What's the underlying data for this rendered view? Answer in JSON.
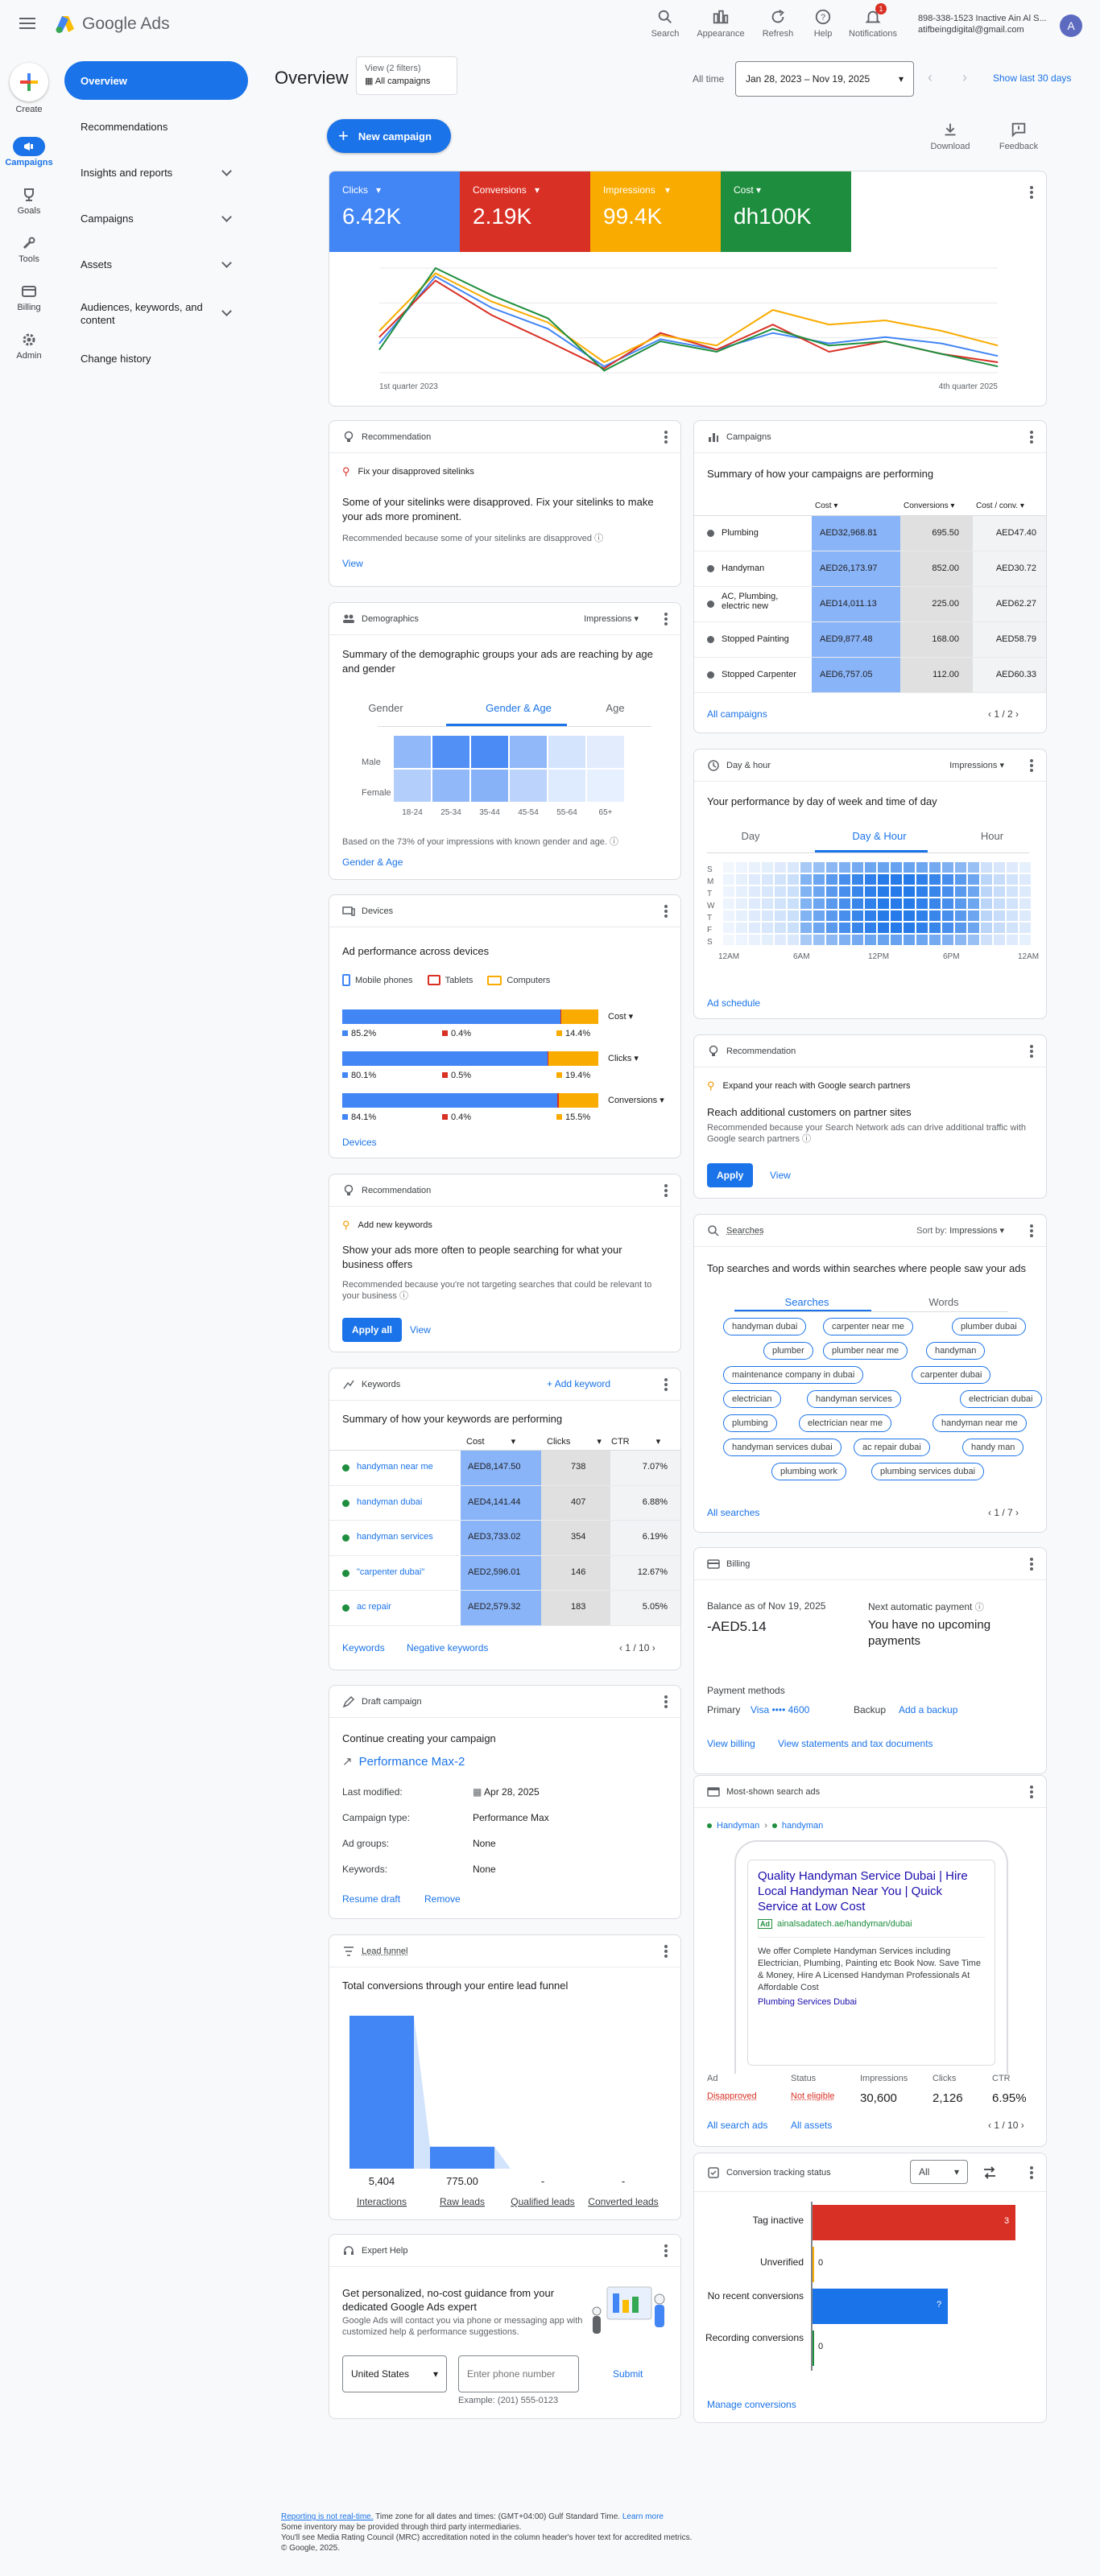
{
  "app": {
    "name": "Google Ads"
  },
  "topbar": {
    "search": "Search",
    "appearance": "Appearance",
    "refresh": "Refresh",
    "help": "Help",
    "notifications": "Notifications",
    "notif_count": "1",
    "account_line1": "898-338-1523 Inactive Ain Al S...",
    "account_line2": "atifbeingdigital@gmail.com",
    "avatar": "A"
  },
  "rail": {
    "create": "Create",
    "campaigns": "Campaigns",
    "goals": "Goals",
    "tools": "Tools",
    "billing": "Billing",
    "admin": "Admin"
  },
  "nav": {
    "overview": "Overview",
    "recommendations": "Recommendations",
    "insights": "Insights and reports",
    "campaigns": "Campaigns",
    "assets": "Assets",
    "audiences": "Audiences, keywords, and content",
    "change_history": "Change history"
  },
  "header": {
    "title": "Overview",
    "view_filter_line1": "View (2 filters)",
    "view_filter_line2": "All campaigns",
    "all_time": "All time",
    "date_range": "Jan 28, 2023 – Nov 19, 2025",
    "show_last": "Show last 30 days",
    "new_campaign": "New campaign",
    "download": "Download",
    "feedback": "Feedback"
  },
  "metrics": [
    {
      "label": "Clicks",
      "value": "6.42K",
      "color": "#4285f4"
    },
    {
      "label": "Conversions",
      "value": "2.19K",
      "color": "#d93025"
    },
    {
      "label": "Impressions",
      "value": "99.4K",
      "color": "#f9ab00"
    },
    {
      "label": "Cost",
      "value": "dh100K",
      "color": "#1e8e3e"
    }
  ],
  "chart_data": {
    "type": "line",
    "x": [
      "1st quarter 2023",
      "",
      "",
      "",
      "",
      "",
      "",
      "",
      "",
      "",
      "",
      "4th quarter 2025"
    ],
    "series": [
      {
        "name": "Clicks",
        "color": "#4285f4",
        "values": [
          0.28,
          0.92,
          0.62,
          0.42,
          0.06,
          0.32,
          0.22,
          0.38,
          0.28,
          0.34,
          0.28,
          0.16
        ]
      },
      {
        "name": "Conversions",
        "color": "#d93025",
        "values": [
          0.34,
          0.88,
          0.55,
          0.3,
          0.04,
          0.38,
          0.22,
          0.46,
          0.2,
          0.3,
          0.18,
          0.1
        ]
      },
      {
        "name": "Impressions",
        "color": "#f9ab00",
        "values": [
          0.4,
          0.95,
          0.68,
          0.48,
          0.1,
          0.36,
          0.26,
          0.6,
          0.46,
          0.5,
          0.4,
          0.26
        ]
      },
      {
        "name": "Cost",
        "color": "#1e8e3e",
        "values": [
          0.22,
          1.0,
          0.74,
          0.52,
          0.02,
          0.3,
          0.2,
          0.42,
          0.26,
          0.3,
          0.18,
          0.06
        ]
      }
    ],
    "xlabel_start": "1st quarter 2023",
    "xlabel_end": "4th quarter 2025",
    "grid": true
  },
  "rec1": {
    "head": "Recommendation",
    "sub": "Fix your disapproved sitelinks",
    "title": "Some of your sitelinks were disapproved. Fix your sitelinks to make your ads more prominent.",
    "note": "Recommended because some of your sitelinks are disapproved",
    "action": "View"
  },
  "demographics": {
    "head": "Demographics",
    "dropdown": "Impressions",
    "title": "Summary of the demographic groups your ads are reaching by age and gender",
    "tabs": [
      "Gender",
      "Gender & Age",
      "Age"
    ],
    "rows": [
      "Male",
      "Female"
    ],
    "cols": [
      "18-24",
      "25-34",
      "35-44",
      "45-54",
      "55-64",
      "65+"
    ],
    "male": [
      0.55,
      0.9,
      0.95,
      0.55,
      0.15,
      0.08
    ],
    "female": [
      0.35,
      0.55,
      0.6,
      0.3,
      0.1,
      0.05
    ],
    "note": "Based on the 73% of your impressions with known gender and age.",
    "link": "Gender & Age"
  },
  "devices": {
    "head": "Devices",
    "title": "Ad performance across devices",
    "legend": [
      "Mobile phones",
      "Tablets",
      "Computers"
    ],
    "rows": [
      {
        "label": "Cost",
        "mobile": 85.2,
        "tablet": 0.4,
        "computer": 14.4,
        "m": "85.2%",
        "t": "0.4%",
        "c": "14.4%"
      },
      {
        "label": "Clicks",
        "mobile": 80.1,
        "tablet": 0.5,
        "computer": 19.4,
        "m": "80.1%",
        "t": "0.5%",
        "c": "19.4%"
      },
      {
        "label": "Conversions",
        "mobile": 84.1,
        "tablet": 0.4,
        "computer": 15.5,
        "m": "84.1%",
        "t": "0.4%",
        "c": "15.5%"
      }
    ],
    "link": "Devices"
  },
  "rec2": {
    "head": "Recommendation",
    "sub": "Add new keywords",
    "title": "Show your ads more often to people searching for what your business offers",
    "note": "Recommended because you're not targeting searches that could be relevant to your business",
    "apply": "Apply all",
    "view": "View"
  },
  "keywords": {
    "head": "Keywords",
    "add": "Add keyword",
    "title": "Summary of how your keywords are performing",
    "cols": [
      "Cost",
      "Clicks",
      "CTR"
    ],
    "rows": [
      {
        "kw": "handyman near me",
        "cost": "AED8,147.50",
        "clicks": "738",
        "ctr": "7.07%"
      },
      {
        "kw": "handyman dubai",
        "cost": "AED4,141.44",
        "clicks": "407",
        "ctr": "6.88%"
      },
      {
        "kw": "handyman services",
        "cost": "AED3,733.02",
        "clicks": "354",
        "ctr": "6.19%"
      },
      {
        "kw": "\"carpenter dubai\"",
        "cost": "AED2,596.01",
        "clicks": "146",
        "ctr": "12.67%"
      },
      {
        "kw": "ac repair",
        "cost": "AED2,579.32",
        "clicks": "183",
        "ctr": "5.05%"
      }
    ],
    "link1": "Keywords",
    "link2": "Negative keywords",
    "page": "1 / 10"
  },
  "draft": {
    "head": "Draft campaign",
    "title": "Continue creating your campaign",
    "name": "Performance Max-2",
    "fields": [
      {
        "k": "Last modified:",
        "v": "Apr 28, 2025"
      },
      {
        "k": "Campaign type:",
        "v": "Performance Max"
      },
      {
        "k": "Ad groups:",
        "v": "None"
      },
      {
        "k": "Keywords:",
        "v": "None"
      }
    ],
    "resume": "Resume draft",
    "remove": "Remove"
  },
  "funnel": {
    "head": "Lead funnel",
    "title": "Total conversions through your entire lead funnel",
    "values": [
      5404,
      775,
      0,
      0
    ],
    "value_labels": [
      "5,404",
      "775.00",
      "-",
      "-"
    ],
    "labels": [
      "Interactions",
      "Raw leads",
      "Qualified leads",
      "Converted leads"
    ]
  },
  "expert": {
    "head": "Expert Help",
    "title": "Get personalized, no-cost guidance from your dedicated Google Ads expert",
    "desc": "Google Ads will contact you via phone or messaging app with customized help & performance suggestions.",
    "country": "United States",
    "phone_placeholder": "Enter phone number",
    "submit": "Submit",
    "example": "Example: (201) 555-0123"
  },
  "campaigns": {
    "head": "Campaigns",
    "title": "Summary of how your campaigns are performing",
    "cols": [
      "Cost",
      "Conversions",
      "Cost / conv."
    ],
    "rows": [
      {
        "name": "Plumbing",
        "cost": "AED32,968.81",
        "conv": "695.50",
        "cpc": "AED47.40"
      },
      {
        "name": "Handyman",
        "cost": "AED26,173.97",
        "conv": "852.00",
        "cpc": "AED30.72"
      },
      {
        "name": "AC, Plumbing, electric new",
        "cost": "AED14,011.13",
        "conv": "225.00",
        "cpc": "AED62.27"
      },
      {
        "name": "Stopped Painting",
        "cost": "AED9,877.48",
        "conv": "168.00",
        "cpc": "AED58.79"
      },
      {
        "name": "Stopped Carpenter",
        "cost": "AED6,757.05",
        "conv": "112.00",
        "cpc": "AED60.33"
      }
    ],
    "link": "All campaigns",
    "page": "1 / 2"
  },
  "dayhour": {
    "head": "Day & hour",
    "dropdown": "Impressions",
    "title": "Your performance by day of week and time of day",
    "tabs": [
      "Day",
      "Day & Hour",
      "Hour"
    ],
    "days": [
      "S",
      "M",
      "T",
      "W",
      "T",
      "F",
      "S"
    ],
    "xlabels": [
      "12AM",
      "6AM",
      "12PM",
      "6PM",
      "12AM"
    ],
    "link": "Ad schedule"
  },
  "rec3": {
    "head": "Recommendation",
    "sub": "Expand your reach with Google search partners",
    "title": "Reach additional customers on partner sites",
    "note": "Recommended because your Search Network ads can drive additional traffic with Google search partners",
    "apply": "Apply",
    "view": "View"
  },
  "searches": {
    "head": "Searches",
    "sortby": "Sort by:",
    "dropdown": "Impressions",
    "title": "Top searches and words within searches where people saw your ads",
    "tabs": [
      "Searches",
      "Words"
    ],
    "chips": [
      "handyman dubai",
      "carpenter near me",
      "plumber dubai",
      "plumber",
      "plumber near me",
      "handyman",
      "maintenance company in dubai",
      "carpenter dubai",
      "electrician",
      "handyman services",
      "electrician dubai",
      "plumbing",
      "electrician near me",
      "handyman near me",
      "handyman services dubai",
      "ac repair dubai",
      "handy man",
      "plumbing work",
      "plumbing services dubai"
    ],
    "link": "All searches",
    "page": "1 / 7"
  },
  "billing": {
    "head": "Billing",
    "balance_label": "Balance as of Nov 19, 2025",
    "balance": "-AED5.14",
    "next_label": "Next automatic payment",
    "next_value": "You have no upcoming payments",
    "methods": "Payment methods",
    "primary": "Primary",
    "visa": "Visa •••• 4600",
    "backup": "Backup",
    "add_backup": "Add a backup",
    "view": "View billing",
    "statements": "View statements and tax documents"
  },
  "ads": {
    "head": "Most-shown search ads",
    "crumb1": "Handyman",
    "crumb2": "handyman",
    "headline": "Quality Handyman Service Dubai | Hire Local Handyman Near You | Quick Service at Low Cost",
    "ad_label": "Ad",
    "url": "ainalsadatech.ae/handyman/dubai",
    "desc": "We offer Complete Handyman Services including Electrician, Plumbing, Painting etc Book Now. Save Time & Money, Hire A Licensed Handyman Professionals At Affordable Cost",
    "sitelink": "Plumbing Services Dubai",
    "cols": [
      "Ad",
      "Status",
      "Impressions",
      "Clicks",
      "CTR"
    ],
    "vals": [
      "Disapproved",
      "Not eligible",
      "30,600",
      "2,126",
      "6.95%"
    ],
    "link1": "All search ads",
    "link2": "All assets",
    "page": "1 / 10"
  },
  "conv_status": {
    "head": "Conversion tracking status",
    "dropdown": "All",
    "rows": [
      {
        "label": "Tag inactive",
        "value": 3,
        "text": "3",
        "color": "#d93025"
      },
      {
        "label": "Unverified",
        "value": 0,
        "text": "0",
        "color": "#f9ab00"
      },
      {
        "label": "No recent conversions",
        "value": 2,
        "text": "?",
        "color": "#1a73e8"
      },
      {
        "label": "Recording conversions",
        "value": 0,
        "text": "0",
        "color": "#1e8e3e"
      }
    ],
    "link": "Manage conversions"
  },
  "footer": {
    "line1_link": "Reporting is not real-time.",
    "line1": "Time zone for all dates and times: (GMT+04:00) Gulf Standard Time.",
    "learn": "Learn more",
    "line2": "Some inventory may be provided through third party intermediaries.",
    "line3": "You'll see Media Rating Council (MRC) accreditation noted in the column header's hover text for accredited metrics.",
    "line4": "© Google, 2025."
  }
}
